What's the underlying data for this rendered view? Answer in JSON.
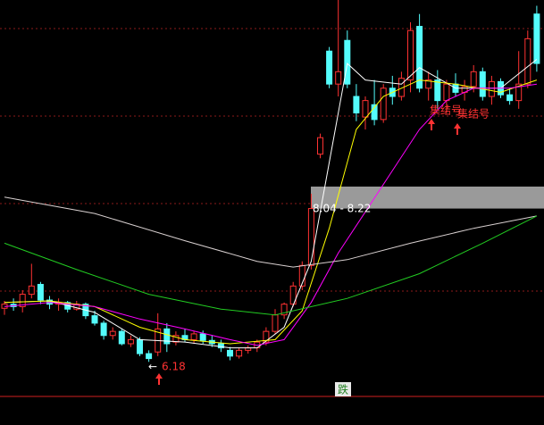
{
  "chart_data": {
    "type": "candlestick",
    "ylim": [
      5.75,
      10.57
    ],
    "up_color": "#ff3232",
    "down_color": "#54fcfc",
    "candles": {
      "open": [
        6.83,
        6.88,
        6.85,
        7.0,
        7.12,
        6.93,
        6.88,
        6.9,
        6.82,
        6.88,
        6.74,
        6.65,
        6.5,
        6.55,
        6.4,
        6.45,
        6.28,
        6.3,
        6.58,
        6.42,
        6.5,
        6.45,
        6.52,
        6.44,
        6.4,
        6.32,
        6.25,
        6.32,
        6.35,
        6.42,
        6.55,
        6.75,
        6.88,
        7.1,
        7.35,
        8.7,
        9.95,
        9.55,
        10.08,
        9.4,
        9.15,
        9.3,
        9.12,
        9.5,
        9.4,
        9.6,
        10.25,
        9.5,
        9.6,
        9.35,
        9.55,
        9.45,
        9.52,
        9.7,
        9.4,
        9.58,
        9.42,
        9.35,
        9.55,
        10.4
      ],
      "high": [
        6.92,
        6.95,
        7.05,
        7.37,
        7.15,
        6.98,
        6.95,
        6.92,
        6.92,
        6.9,
        6.8,
        6.68,
        6.6,
        6.58,
        6.5,
        6.48,
        6.32,
        6.77,
        6.65,
        6.55,
        6.58,
        6.55,
        6.56,
        6.5,
        6.45,
        6.36,
        6.35,
        6.38,
        6.45,
        6.6,
        6.82,
        6.9,
        7.15,
        7.4,
        8.22,
        8.95,
        10.0,
        10.57,
        10.2,
        9.55,
        9.4,
        9.6,
        9.55,
        9.65,
        9.7,
        10.3,
        10.4,
        9.7,
        9.72,
        9.6,
        9.68,
        9.6,
        9.78,
        9.75,
        9.65,
        9.62,
        9.5,
        9.95,
        10.2,
        10.5
      ],
      "low": [
        6.75,
        6.8,
        6.78,
        6.95,
        6.88,
        6.82,
        6.8,
        6.78,
        6.8,
        6.7,
        6.62,
        6.45,
        6.45,
        6.38,
        6.36,
        6.25,
        6.18,
        6.25,
        6.3,
        6.38,
        6.42,
        6.4,
        6.4,
        6.36,
        6.3,
        6.2,
        6.22,
        6.28,
        6.3,
        6.38,
        6.52,
        6.7,
        6.85,
        7.05,
        7.3,
        8.65,
        9.5,
        9.4,
        9.5,
        9.1,
        9.0,
        9.05,
        9.08,
        9.3,
        9.35,
        9.45,
        9.45,
        9.35,
        9.25,
        9.2,
        9.4,
        9.35,
        9.45,
        9.35,
        9.3,
        9.38,
        9.3,
        9.25,
        9.5,
        9.7
      ],
      "close": [
        6.88,
        6.85,
        7.0,
        7.1,
        6.93,
        6.88,
        6.9,
        6.82,
        6.88,
        6.74,
        6.65,
        6.5,
        6.55,
        6.4,
        6.45,
        6.28,
        6.22,
        6.58,
        6.4,
        6.5,
        6.45,
        6.52,
        6.44,
        6.4,
        6.35,
        6.25,
        6.32,
        6.35,
        6.42,
        6.55,
        6.75,
        6.88,
        7.1,
        7.35,
        8.04,
        8.9,
        9.55,
        9.7,
        9.55,
        9.2,
        9.35,
        9.12,
        9.5,
        9.4,
        9.62,
        10.2,
        9.5,
        9.6,
        9.35,
        9.55,
        9.45,
        9.52,
        9.7,
        9.4,
        9.58,
        9.42,
        9.35,
        9.55,
        10.1,
        9.8
      ]
    },
    "lines": [
      {
        "color": "#ffffff",
        "x": [
          0,
          5,
          10,
          15,
          20,
          25,
          28,
          31,
          34,
          36,
          38,
          40,
          44,
          46,
          50,
          55,
          59
        ],
        "values": [
          6.9,
          6.92,
          6.78,
          6.45,
          6.42,
          6.35,
          6.35,
          6.6,
          7.4,
          8.6,
          9.8,
          9.6,
          9.55,
          9.75,
          9.5,
          9.5,
          9.85
        ]
      },
      {
        "color": "#ffff00",
        "x": [
          0,
          5,
          10,
          15,
          20,
          25,
          30,
          33,
          36,
          39,
          42,
          46,
          50,
          55,
          59
        ],
        "values": [
          6.9,
          6.92,
          6.85,
          6.6,
          6.45,
          6.4,
          6.45,
          6.8,
          7.8,
          9.0,
          9.4,
          9.6,
          9.55,
          9.45,
          9.6
        ]
      },
      {
        "color": "#ff00ff",
        "x": [
          0,
          5,
          10,
          15,
          20,
          25,
          28,
          31,
          34,
          37,
          40,
          43,
          46,
          49,
          52,
          56,
          59
        ],
        "values": [
          6.85,
          6.9,
          6.85,
          6.7,
          6.58,
          6.45,
          6.38,
          6.45,
          6.9,
          7.5,
          8.0,
          8.5,
          9.0,
          9.35,
          9.5,
          9.5,
          9.55
        ]
      },
      {
        "color": "#d8d0d0",
        "x": [
          0,
          10,
          20,
          28,
          32,
          38,
          45,
          52,
          59
        ],
        "values": [
          8.18,
          7.98,
          7.65,
          7.4,
          7.33,
          7.42,
          7.62,
          7.8,
          7.95
        ]
      },
      {
        "color": "#22cc22",
        "x": [
          0,
          8,
          16,
          24,
          30,
          38,
          46,
          53,
          59
        ],
        "values": [
          7.62,
          7.3,
          7.0,
          6.82,
          6.75,
          6.95,
          7.25,
          7.62,
          7.95
        ]
      }
    ],
    "range": {
      "values": [
        8.04,
        8.22
      ],
      "label": "8.04 - 8.22"
    },
    "low_marker": 6.18,
    "signals": [
      "集结号",
      "集结号"
    ],
    "footer_label": "跌"
  }
}
